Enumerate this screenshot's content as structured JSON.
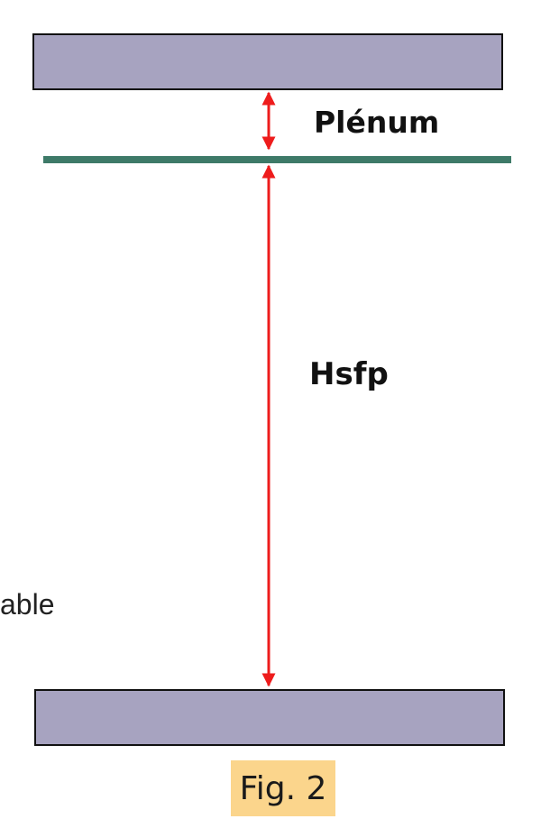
{
  "labels": {
    "plenum": "Plénum",
    "hsfp": "Hsfp",
    "partial_left": "able"
  },
  "caption": "Fig. 2",
  "colors": {
    "slab_fill": "#a7a3c0",
    "false_ceiling": "#3e7a68",
    "dimension_arrow": "#ee1c1c",
    "caption_highlight": "#fbd58c"
  }
}
